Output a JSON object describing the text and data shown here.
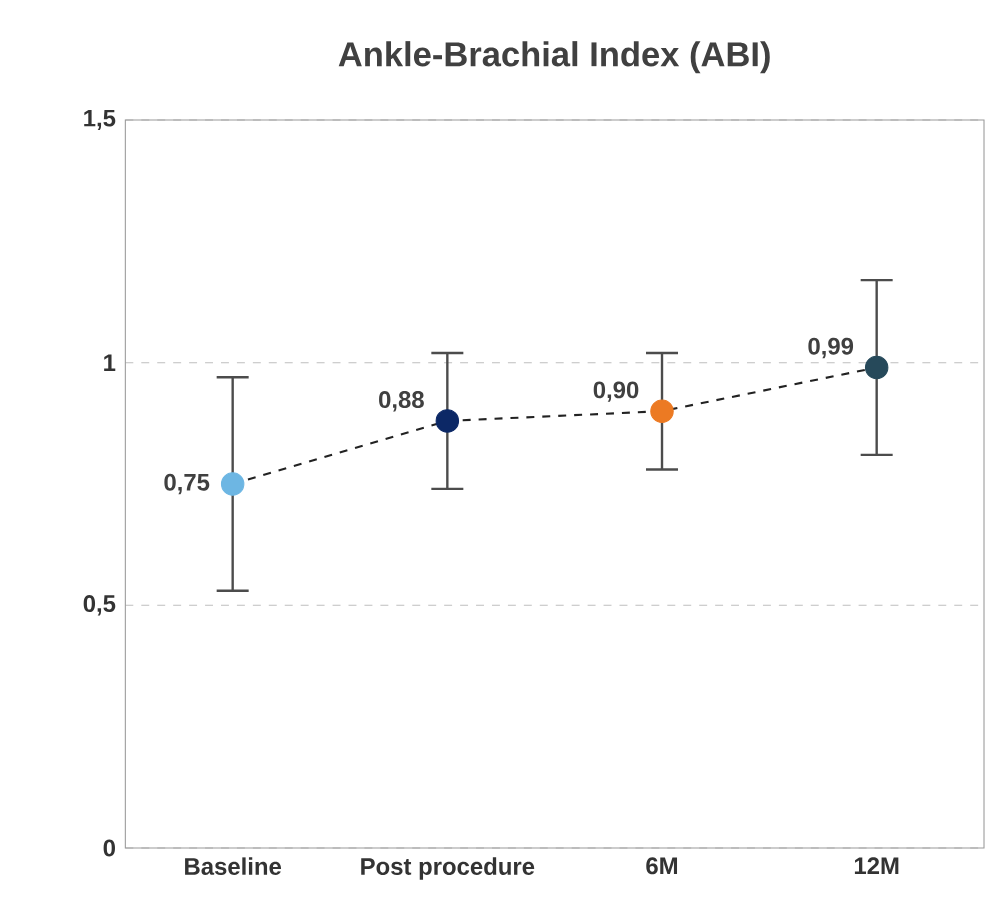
{
  "chart_data": {
    "type": "line",
    "title": "Ankle-Brachial Index (ABI)",
    "categories": [
      "Baseline",
      "Post procedure",
      "6M",
      "12M"
    ],
    "series": [
      {
        "color": "#222222",
        "colors": [
          "#6db6e3",
          "#0c2866",
          "#ec7a23",
          "#26495a"
        ],
        "values": [
          0.75,
          0.88,
          0.9,
          0.99
        ],
        "errors": [
          0.22,
          0.14,
          0.12,
          0.18
        ],
        "value_labels": [
          "0,75",
          "0,88",
          "0,90",
          "0,99"
        ]
      }
    ],
    "ylim": [
      0,
      1.5
    ],
    "yticks": [
      {
        "value": 0,
        "label": "0"
      },
      {
        "value": 0.5,
        "label": "0,5"
      },
      {
        "value": 1,
        "label": "1"
      },
      {
        "value": 1.5,
        "label": "1,5"
      }
    ],
    "grid": "y",
    "marker": "circle",
    "line_style": "dashed"
  }
}
